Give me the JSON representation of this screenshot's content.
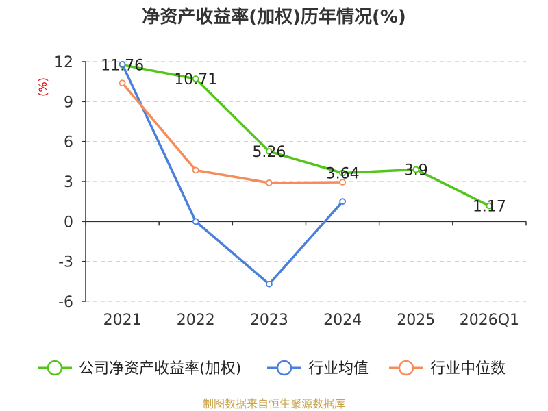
{
  "chart_data": {
    "type": "line",
    "title": "净资产收益率(加权)历年情况(%)",
    "ylabel": "(%)",
    "categories": [
      "2021",
      "2022",
      "2023",
      "2024",
      "2025",
      "2026Q1"
    ],
    "ylim": [
      -6,
      12
    ],
    "yticks": [
      12,
      9,
      6,
      3,
      0,
      -3,
      -6
    ],
    "grid": true,
    "legend_position": "bottom",
    "series": [
      {
        "name": "公司净资产收益率(加权)",
        "color": "#52c41a",
        "values": [
          11.76,
          10.71,
          5.26,
          3.64,
          3.9,
          1.17
        ],
        "labels": [
          "11.76",
          "10.71",
          "5.26",
          "3.64",
          "3.9",
          "1.17"
        ]
      },
      {
        "name": "行业均值",
        "color": "#4a7fdc",
        "values": [
          11.8,
          0.0,
          -4.7,
          1.5,
          null,
          null
        ]
      },
      {
        "name": "行业中位数",
        "color": "#f58c5a",
        "values": [
          10.4,
          3.85,
          2.9,
          2.95,
          null,
          null
        ]
      }
    ]
  },
  "footer": {
    "source": "制图数据来自恒生聚源数据库"
  },
  "colors": {
    "footer_text": "#c8a44b",
    "axis": "#333333",
    "grid": "#cccccc",
    "ylabel": "#e00000"
  }
}
